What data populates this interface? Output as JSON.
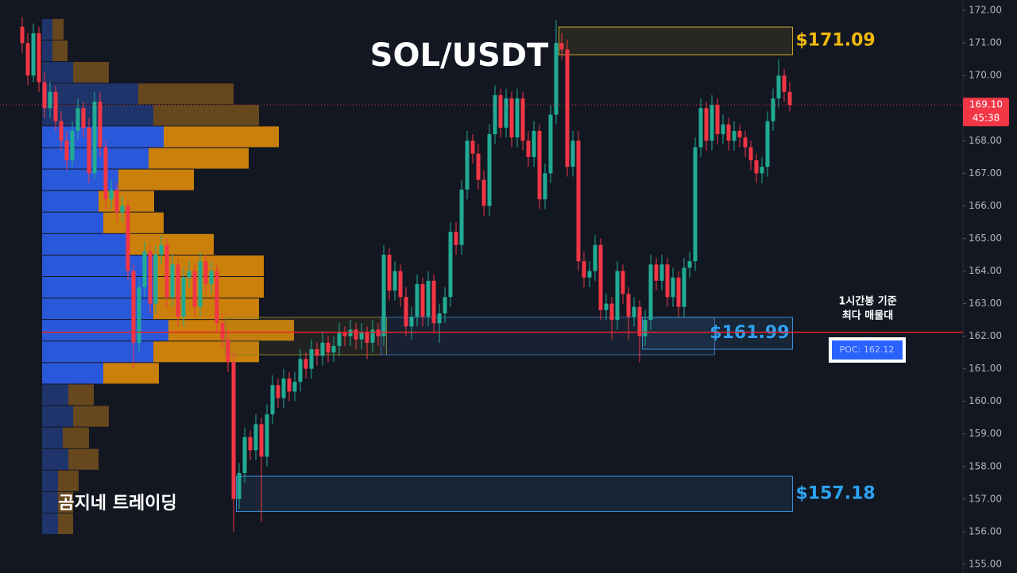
{
  "chart_data": {
    "type": "candlestick",
    "title": "SOL/USDT",
    "watermark": "곰지네 트레이딩",
    "ylim": [
      154.73,
      172.32
    ],
    "yticks": [
      {
        "value": 155,
        "label": "155.00"
      },
      {
        "value": 156,
        "label": "156.00"
      },
      {
        "value": 157,
        "label": "157.00"
      },
      {
        "value": 158,
        "label": "158.00"
      },
      {
        "value": 159,
        "label": "159.00"
      },
      {
        "value": 160,
        "label": "160.00"
      },
      {
        "value": 161,
        "label": "161.00"
      },
      {
        "value": 162,
        "label": "162.00"
      },
      {
        "value": 163,
        "label": "163.00"
      },
      {
        "value": 164,
        "label": "164.00"
      },
      {
        "value": 165,
        "label": "165.00"
      },
      {
        "value": 166,
        "label": "166.00"
      },
      {
        "value": 167,
        "label": "167.00"
      },
      {
        "value": 168,
        "label": "168.00"
      },
      {
        "value": 169,
        "label": "169.00"
      },
      {
        "value": 170,
        "label": "170.00"
      },
      {
        "value": 171,
        "label": "171.00"
      },
      {
        "value": 172,
        "label": "172.00"
      }
    ],
    "grid": false,
    "up_color": "#22ab94",
    "down_color": "#f23645",
    "candles": [
      [
        171.5,
        171.8,
        170.7,
        171.0
      ],
      [
        171.0,
        171.3,
        169.7,
        170.0
      ],
      [
        170.0,
        171.6,
        169.8,
        171.3
      ],
      [
        171.3,
        171.5,
        169.5,
        169.8
      ],
      [
        169.8,
        170.1,
        168.7,
        169.0
      ],
      [
        169.0,
        169.8,
        168.7,
        169.5
      ],
      [
        169.5,
        169.7,
        168.3,
        168.6
      ],
      [
        168.6,
        168.9,
        167.7,
        168.0
      ],
      [
        168.0,
        168.3,
        167.1,
        167.4
      ],
      [
        167.4,
        168.6,
        167.2,
        168.3
      ],
      [
        168.3,
        169.3,
        168.0,
        169.0
      ],
      [
        169.0,
        169.2,
        168.1,
        168.4
      ],
      [
        168.4,
        168.7,
        166.7,
        167.0
      ],
      [
        167.0,
        169.5,
        166.8,
        169.2
      ],
      [
        169.2,
        169.5,
        167.5,
        167.8
      ],
      [
        167.8,
        168.0,
        165.9,
        166.2
      ],
      [
        166.2,
        166.8,
        165.9,
        166.5
      ],
      [
        166.5,
        166.7,
        165.5,
        165.8
      ],
      [
        165.8,
        166.3,
        165.5,
        166.0
      ],
      [
        166.0,
        166.2,
        163.7,
        164.0
      ],
      [
        164.0,
        164.2,
        161.0,
        161.8
      ],
      [
        161.8,
        163.8,
        161.5,
        163.5
      ],
      [
        163.5,
        164.9,
        163.2,
        164.6
      ],
      [
        164.6,
        164.8,
        162.7,
        163.0
      ],
      [
        163.0,
        164.8,
        162.7,
        164.5
      ],
      [
        164.5,
        165.1,
        164.2,
        164.8
      ],
      [
        164.8,
        165.0,
        162.9,
        163.2
      ],
      [
        163.2,
        164.5,
        162.9,
        164.2
      ],
      [
        164.2,
        164.4,
        162.3,
        162.6
      ],
      [
        162.6,
        164.1,
        162.3,
        163.8
      ],
      [
        163.8,
        164.3,
        163.5,
        164.0
      ],
      [
        164.0,
        164.2,
        162.6,
        162.9
      ],
      [
        162.9,
        164.6,
        162.6,
        164.3
      ],
      [
        164.3,
        164.5,
        163.3,
        163.6
      ],
      [
        163.6,
        164.3,
        163.3,
        164.0
      ],
      [
        164.0,
        164.2,
        162.1,
        162.4
      ],
      [
        162.4,
        162.7,
        161.6,
        161.9
      ],
      [
        161.9,
        162.2,
        160.9,
        161.2
      ],
      [
        161.2,
        161.5,
        156.0,
        157.0
      ],
      [
        157.0,
        158.1,
        156.7,
        157.8
      ],
      [
        157.8,
        159.2,
        157.5,
        158.9
      ],
      [
        158.9,
        159.1,
        158.2,
        158.5
      ],
      [
        158.5,
        159.6,
        158.2,
        159.3
      ],
      [
        159.3,
        159.5,
        156.3,
        158.3
      ],
      [
        158.3,
        159.9,
        158.0,
        159.6
      ],
      [
        159.6,
        160.8,
        159.3,
        160.5
      ],
      [
        160.5,
        160.7,
        159.8,
        160.1
      ],
      [
        160.1,
        161.0,
        159.8,
        160.7
      ],
      [
        160.7,
        160.9,
        160.0,
        160.3
      ],
      [
        160.3,
        160.9,
        160.0,
        160.6
      ],
      [
        160.6,
        161.6,
        160.3,
        161.3
      ],
      [
        161.3,
        161.5,
        160.7,
        161.0
      ],
      [
        161.0,
        161.9,
        160.7,
        161.6
      ],
      [
        161.6,
        161.8,
        161.1,
        161.4
      ],
      [
        161.4,
        162.1,
        161.1,
        161.8
      ],
      [
        161.8,
        162.0,
        161.2,
        161.5
      ],
      [
        161.5,
        162.0,
        161.2,
        161.7
      ],
      [
        161.7,
        162.4,
        161.4,
        162.1
      ],
      [
        162.1,
        162.3,
        161.7,
        162.0
      ],
      [
        162.0,
        162.5,
        161.7,
        162.2
      ],
      [
        162.2,
        162.4,
        161.6,
        161.9
      ],
      [
        161.9,
        162.4,
        161.6,
        162.1
      ],
      [
        162.1,
        162.3,
        161.3,
        161.8
      ],
      [
        161.8,
        162.5,
        161.5,
        162.2
      ],
      [
        162.2,
        162.4,
        161.7,
        162.0
      ],
      [
        162.0,
        164.8,
        161.7,
        164.5
      ],
      [
        164.5,
        164.7,
        163.1,
        163.4
      ],
      [
        163.4,
        164.3,
        163.1,
        164.0
      ],
      [
        164.0,
        164.2,
        162.9,
        163.2
      ],
      [
        163.2,
        163.5,
        162.0,
        162.3
      ],
      [
        162.3,
        162.9,
        161.9,
        162.6
      ],
      [
        162.6,
        163.9,
        162.3,
        163.6
      ],
      [
        163.6,
        163.8,
        162.3,
        162.6
      ],
      [
        162.6,
        164.0,
        162.3,
        163.7
      ],
      [
        163.7,
        163.9,
        162.1,
        162.4
      ],
      [
        162.4,
        163.0,
        161.8,
        162.7
      ],
      [
        162.7,
        163.5,
        162.4,
        163.2
      ],
      [
        163.2,
        165.5,
        162.9,
        165.2
      ],
      [
        165.2,
        165.5,
        164.5,
        164.8
      ],
      [
        164.8,
        166.8,
        164.5,
        166.5
      ],
      [
        166.5,
        168.3,
        166.2,
        168.0
      ],
      [
        168.0,
        168.2,
        167.3,
        167.6
      ],
      [
        167.6,
        167.9,
        166.5,
        166.8
      ],
      [
        166.8,
        167.1,
        165.7,
        166.0
      ],
      [
        166.0,
        168.5,
        165.7,
        168.2
      ],
      [
        168.2,
        169.7,
        167.9,
        169.4
      ],
      [
        169.4,
        169.6,
        168.1,
        168.4
      ],
      [
        168.4,
        169.6,
        168.1,
        169.3
      ],
      [
        169.3,
        169.5,
        167.8,
        168.1
      ],
      [
        168.1,
        169.6,
        167.8,
        169.3
      ],
      [
        169.3,
        169.5,
        167.7,
        168.0
      ],
      [
        168.0,
        168.3,
        167.2,
        167.5
      ],
      [
        167.5,
        168.6,
        167.2,
        168.3
      ],
      [
        168.3,
        168.5,
        165.9,
        166.2
      ],
      [
        166.2,
        167.3,
        165.9,
        167.0
      ],
      [
        167.0,
        169.1,
        166.7,
        168.8
      ],
      [
        168.8,
        171.7,
        168.5,
        171.0
      ],
      [
        171.0,
        171.3,
        170.5,
        170.8
      ],
      [
        170.8,
        171.1,
        166.9,
        167.2
      ],
      [
        167.2,
        168.3,
        166.9,
        168.0
      ],
      [
        168.0,
        168.3,
        164.0,
        164.3
      ],
      [
        164.3,
        164.6,
        163.5,
        163.8
      ],
      [
        163.8,
        164.3,
        163.5,
        164.0
      ],
      [
        164.0,
        165.1,
        163.7,
        164.8
      ],
      [
        164.8,
        165.0,
        162.5,
        162.8
      ],
      [
        162.8,
        163.3,
        162.5,
        163.0
      ],
      [
        163.0,
        163.2,
        161.9,
        162.5
      ],
      [
        162.5,
        164.3,
        162.2,
        164.0
      ],
      [
        164.0,
        164.2,
        163.0,
        163.3
      ],
      [
        163.3,
        163.5,
        161.9,
        162.6
      ],
      [
        162.6,
        163.2,
        162.3,
        162.9
      ],
      [
        162.9,
        163.1,
        161.2,
        162.0
      ],
      [
        162.0,
        162.8,
        161.7,
        162.5
      ],
      [
        162.5,
        164.5,
        162.2,
        164.2
      ],
      [
        164.2,
        164.4,
        163.4,
        163.7
      ],
      [
        163.7,
        164.5,
        163.4,
        164.2
      ],
      [
        164.2,
        164.4,
        162.9,
        163.2
      ],
      [
        163.2,
        164.1,
        162.9,
        163.8
      ],
      [
        163.8,
        164.0,
        162.6,
        162.9
      ],
      [
        162.9,
        164.4,
        162.6,
        164.1
      ],
      [
        164.1,
        164.6,
        163.8,
        164.3
      ],
      [
        164.3,
        168.1,
        164.0,
        167.8
      ],
      [
        167.8,
        169.3,
        167.5,
        169.0
      ],
      [
        169.0,
        169.2,
        167.7,
        168.0
      ],
      [
        168.0,
        169.4,
        167.7,
        169.1
      ],
      [
        169.1,
        169.3,
        167.9,
        168.2
      ],
      [
        168.2,
        168.8,
        167.9,
        168.5
      ],
      [
        168.5,
        168.7,
        167.7,
        168.0
      ],
      [
        168.0,
        168.6,
        167.7,
        168.3
      ],
      [
        168.3,
        168.5,
        167.8,
        168.1
      ],
      [
        168.1,
        168.3,
        167.5,
        167.8
      ],
      [
        167.8,
        168.0,
        167.1,
        167.4
      ],
      [
        167.4,
        167.6,
        166.7,
        167.0
      ],
      [
        167.0,
        167.5,
        166.7,
        167.2
      ],
      [
        167.2,
        168.9,
        166.9,
        168.6
      ],
      [
        168.6,
        169.6,
        168.3,
        169.3
      ],
      [
        169.3,
        170.5,
        169.0,
        170.0
      ],
      [
        170.0,
        170.2,
        169.2,
        169.5
      ],
      [
        169.5,
        169.8,
        168.9,
        169.1
      ]
    ],
    "volume_profile": [
      {
        "price": 171.42,
        "buy": 13,
        "sell": 14,
        "in_value_area": false
      },
      {
        "price": 170.76,
        "buy": 13,
        "sell": 19,
        "in_value_area": false
      },
      {
        "price": 170.1,
        "buy": 39,
        "sell": 45,
        "in_value_area": false
      },
      {
        "price": 169.44,
        "buy": 121,
        "sell": 120,
        "in_value_area": false
      },
      {
        "price": 168.78,
        "buy": 140,
        "sell": 133,
        "in_value_area": false
      },
      {
        "price": 168.12,
        "buy": 153,
        "sell": 145,
        "in_value_area": true
      },
      {
        "price": 167.46,
        "buy": 134,
        "sell": 126,
        "in_value_area": true
      },
      {
        "price": 166.8,
        "buy": 96,
        "sell": 95,
        "in_value_area": true
      },
      {
        "price": 166.14,
        "buy": 71,
        "sell": 70,
        "in_value_area": true
      },
      {
        "price": 165.48,
        "buy": 77,
        "sell": 76,
        "in_value_area": true
      },
      {
        "price": 164.82,
        "buy": 109,
        "sell": 107,
        "in_value_area": true
      },
      {
        "price": 164.16,
        "buy": 140,
        "sell": 139,
        "in_value_area": true
      },
      {
        "price": 163.5,
        "buy": 140,
        "sell": 139,
        "in_value_area": true
      },
      {
        "price": 162.84,
        "buy": 140,
        "sell": 133,
        "in_value_area": true
      },
      {
        "price": 162.18,
        "buy": 159,
        "sell": 158,
        "in_value_area": true
      },
      {
        "price": 161.52,
        "buy": 140,
        "sell": 133,
        "in_value_area": true
      },
      {
        "price": 160.86,
        "buy": 77,
        "sell": 70,
        "in_value_area": true
      },
      {
        "price": 160.2,
        "buy": 33,
        "sell": 32,
        "in_value_area": false
      },
      {
        "price": 159.54,
        "buy": 39,
        "sell": 45,
        "in_value_area": false
      },
      {
        "price": 158.88,
        "buy": 26,
        "sell": 33,
        "in_value_area": false
      },
      {
        "price": 158.22,
        "buy": 33,
        "sell": 38,
        "in_value_area": false
      },
      {
        "price": 157.56,
        "buy": 20,
        "sell": 26,
        "in_value_area": false
      },
      {
        "price": 156.9,
        "buy": 20,
        "sell": 19,
        "in_value_area": false
      },
      {
        "price": 156.24,
        "buy": 20,
        "sell": 19,
        "in_value_area": false
      }
    ],
    "zones": [
      {
        "top": 171.49,
        "bottom": 170.64,
        "from": 97,
        "to": 138,
        "color": "#c9a227",
        "label": "$171.09",
        "label_position": "outside"
      },
      {
        "top": 162.58,
        "bottom": 161.43,
        "from": 37,
        "to": 65,
        "color": "#8a7a2a"
      },
      {
        "top": 162.58,
        "bottom": 161.43,
        "from": 65,
        "to": 124,
        "color": "#3a6ea5"
      },
      {
        "top": 162.58,
        "bottom": 161.6,
        "from": 112,
        "to": 138,
        "color": "#3b8fd6",
        "label": "$161.99",
        "label_position": "inside"
      },
      {
        "top": 157.7,
        "bottom": 156.62,
        "from": 39,
        "to": 138,
        "color": "#3b8fd6",
        "label": "$157.18",
        "label_position": "outside"
      }
    ],
    "poc": {
      "value": 162.12,
      "label": "POC: 162.12",
      "note": [
        "1시간봉 기준",
        "최다 매물대"
      ]
    },
    "last_price": {
      "value": 169.1,
      "label": "169.10",
      "countdown": "45:38"
    }
  }
}
